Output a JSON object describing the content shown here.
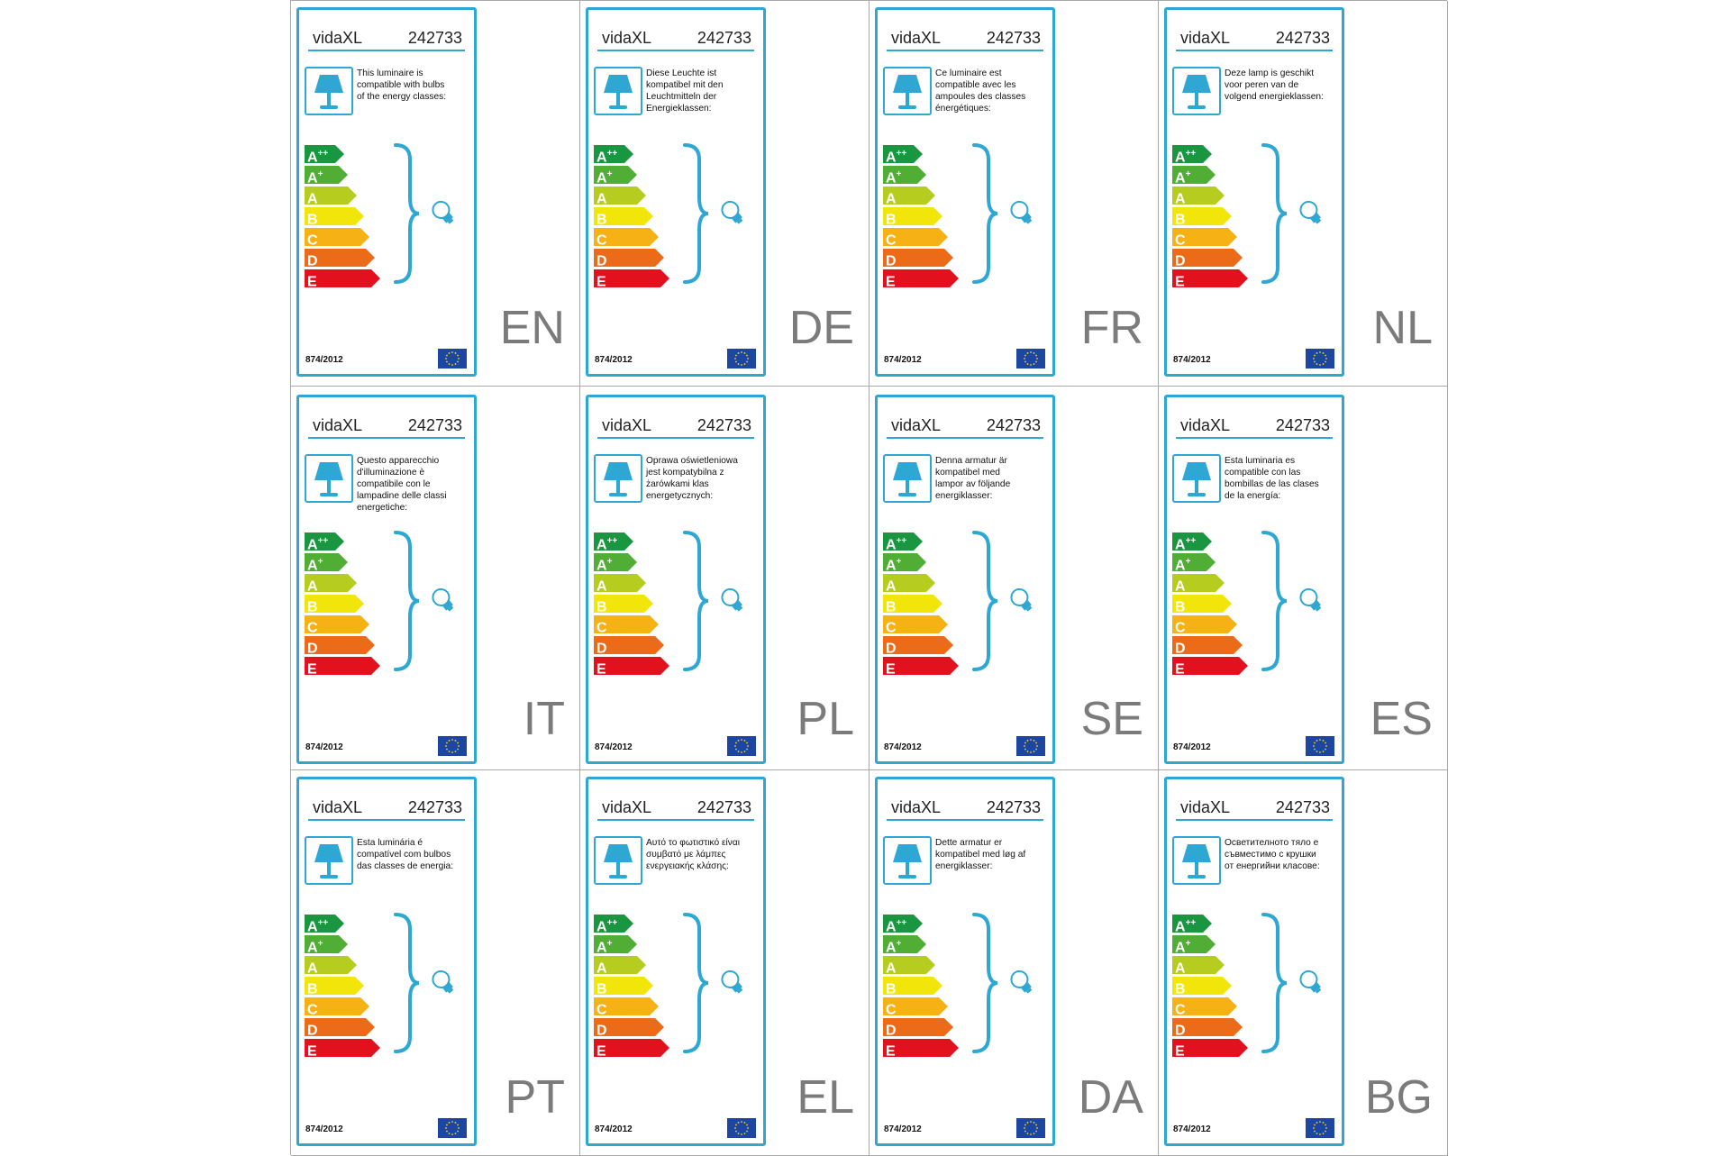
{
  "brand": "vidaXL",
  "product_code": "242733",
  "regulation": "874/2012",
  "energy_classes": [
    {
      "letter": "A",
      "sup": "++",
      "color": "#1a9640"
    },
    {
      "letter": "A",
      "sup": "+",
      "color": "#4fae33"
    },
    {
      "letter": "A",
      "sup": "",
      "color": "#b6cc1f"
    },
    {
      "letter": "B",
      "sup": "",
      "color": "#f2e50a"
    },
    {
      "letter": "C",
      "sup": "",
      "color": "#f6b214"
    },
    {
      "letter": "D",
      "sup": "",
      "color": "#ec6b18"
    },
    {
      "letter": "E",
      "sup": "",
      "color": "#e3101d"
    }
  ],
  "icons": {
    "lamp": "table-lamp-icon",
    "bulb": "light-bulb-icon",
    "brace": "curly-brace",
    "flag": "eu-flag-icon"
  },
  "colors": {
    "frame": "#2ea7d2",
    "grid_line": "#a9a9a9",
    "lang_text": "#7b7b7b"
  },
  "labels": [
    {
      "lang": "EN",
      "text": "This luminaire is\ncompatible with bulbs\nof the energy classes:"
    },
    {
      "lang": "DE",
      "text": "Diese Leuchte ist\nkompatibel mit den\nLeuchtmitteln der\nEnergieklassen:"
    },
    {
      "lang": "FR",
      "text": "Ce luminaire est\ncompatible avec les\nampoules des classes\nénergétiques:"
    },
    {
      "lang": "NL",
      "text": "Deze lamp is geschikt\nvoor peren van de\nvolgend energieklassen:"
    },
    {
      "lang": "IT",
      "text": "Questo apparecchio\nd'illuminazione è\ncompatibile con le\nlampadine delle classi\nenergetiche:"
    },
    {
      "lang": "PL",
      "text": "Oprawa oświetleniowa\njest kompatybilna z\nżarówkami klas\nenergetycznych:"
    },
    {
      "lang": "SE",
      "text": "Denna armatur är\nkompatibel med\nlampor av följande\nenergiklasser:"
    },
    {
      "lang": "ES",
      "text": "Esta luminaria es\ncompatible con las\nbombillas de las clases\nde la energía:"
    },
    {
      "lang": "PT",
      "text": "Esta luminária é\ncompatível com bulbos\ndas classes de energia:"
    },
    {
      "lang": "EL",
      "text": "Αυτό το φωτιστικό είναι\nσυμβατό με λάμπες\nενεργειακής κλάσης:"
    },
    {
      "lang": "DA",
      "text": "Dette armatur er\nkompatibel med løg af\nenergiklasser:"
    },
    {
      "lang": "BG",
      "text": "Осветителното тяло е\nсъвместимо с крушки\nот енергийни класове:"
    }
  ]
}
